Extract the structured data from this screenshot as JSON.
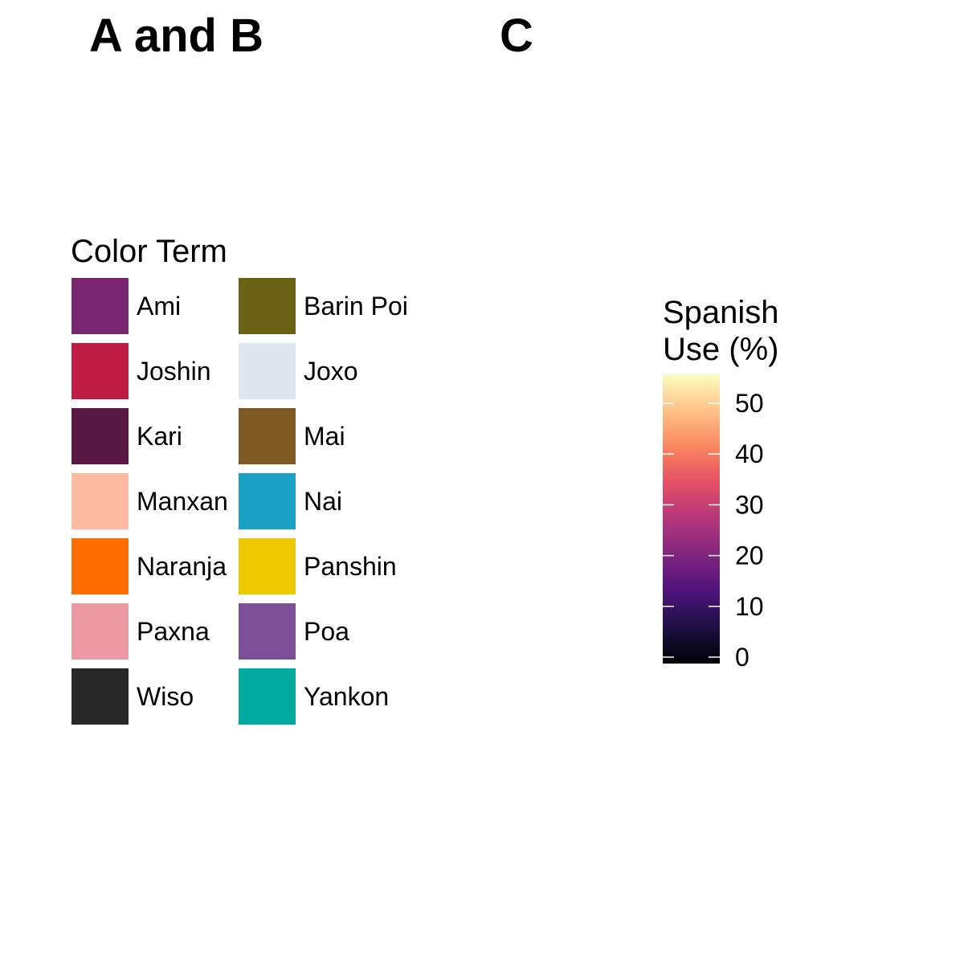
{
  "panels": {
    "left_title": "A and B",
    "right_title": "C"
  },
  "chart_data": [
    {
      "type": "legend",
      "title": "Color Term",
      "entries": [
        {
          "label": "Ami",
          "color": "#78276F"
        },
        {
          "label": "Joshin",
          "color": "#BE1C43"
        },
        {
          "label": "Kari",
          "color": "#581745"
        },
        {
          "label": "Manxan",
          "color": "#FFBBA1"
        },
        {
          "label": "Naranja",
          "color": "#FF6F00"
        },
        {
          "label": "Paxna",
          "color": "#EC9AA2"
        },
        {
          "label": "Wiso",
          "color": "#272727"
        },
        {
          "label": "Barin Poi",
          "color": "#6B6213"
        },
        {
          "label": "Joxo",
          "color": "#E0E6EF"
        },
        {
          "label": "Mai",
          "color": "#7D5A22"
        },
        {
          "label": "Nai",
          "color": "#1AA2C5"
        },
        {
          "label": "Panshin",
          "color": "#EDC900"
        },
        {
          "label": "Poa",
          "color": "#7A4F95"
        },
        {
          "label": "Yankon",
          "color": "#00A99D"
        }
      ],
      "columns": 2
    },
    {
      "type": "colorbar",
      "title_lines": [
        "Spanish",
        "Use (%)"
      ],
      "palette": "magma",
      "range": [
        0,
        57
      ],
      "ticks": [
        0,
        10,
        20,
        30,
        40,
        50
      ],
      "tick_labels": [
        "0",
        "10",
        "20",
        "30",
        "40",
        "50"
      ],
      "stops": [
        "#000004",
        "#1C1044",
        "#4F127B",
        "#812581",
        "#B5367A",
        "#E55064",
        "#FB8761",
        "#FEC287",
        "#FCFDBF"
      ]
    }
  ]
}
